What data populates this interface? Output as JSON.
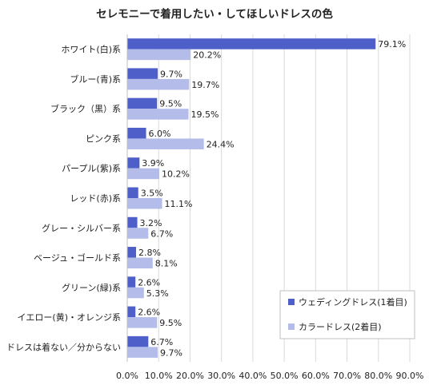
{
  "chart_data": {
    "type": "bar",
    "orientation": "horizontal",
    "title": "セレモニーで着用したい・してほしいドレスの色",
    "categories": [
      "ホワイト(白)系",
      "ブルー(青)系",
      "ブラック（黒）系",
      "ピンク系",
      "パープル(紫)系",
      "レッド(赤)系",
      "グレー・シルバー系",
      "ベージュ・ゴールド系",
      "グリーン(緑)系",
      "イエロー(黄)・オレンジ系",
      "ドレスは着ない／分からない"
    ],
    "series": [
      {
        "name": "ウェディングドレス(1着目)",
        "color": "#4e5fc9",
        "values": [
          79.1,
          9.7,
          9.5,
          6.0,
          3.9,
          3.5,
          3.2,
          2.8,
          2.6,
          2.6,
          6.7
        ],
        "labels": [
          "79.1%",
          "9.7%",
          "9.5%",
          "6.0%",
          "3.9%",
          "3.5%",
          "3.2%",
          "2.8%",
          "2.6%",
          "2.6%",
          "6.7%"
        ]
      },
      {
        "name": "カラードレス(2着目)",
        "color": "#b4bcea",
        "values": [
          20.2,
          19.7,
          19.5,
          24.4,
          10.2,
          11.1,
          6.7,
          8.1,
          5.3,
          9.5,
          9.7
        ],
        "labels": [
          "20.2%",
          "19.7%",
          "19.5%",
          "24.4%",
          "10.2%",
          "11.1%",
          "6.7%",
          "8.1%",
          "5.3%",
          "9.5%",
          "9.7%"
        ]
      }
    ],
    "xlim": [
      0,
      90
    ],
    "xticks": [
      0,
      10,
      20,
      30,
      40,
      50,
      60,
      70,
      80,
      90
    ],
    "xtick_labels": [
      "0.0%",
      "10.0%",
      "20.0%",
      "30.0%",
      "40.0%",
      "50.0%",
      "60.0%",
      "70.0%",
      "80.0%",
      "90.0%"
    ],
    "grid": "vertical",
    "legend": "bottom-right",
    "gridline_color": "#d9d9d9",
    "axis_color": "#bfbfbf"
  }
}
